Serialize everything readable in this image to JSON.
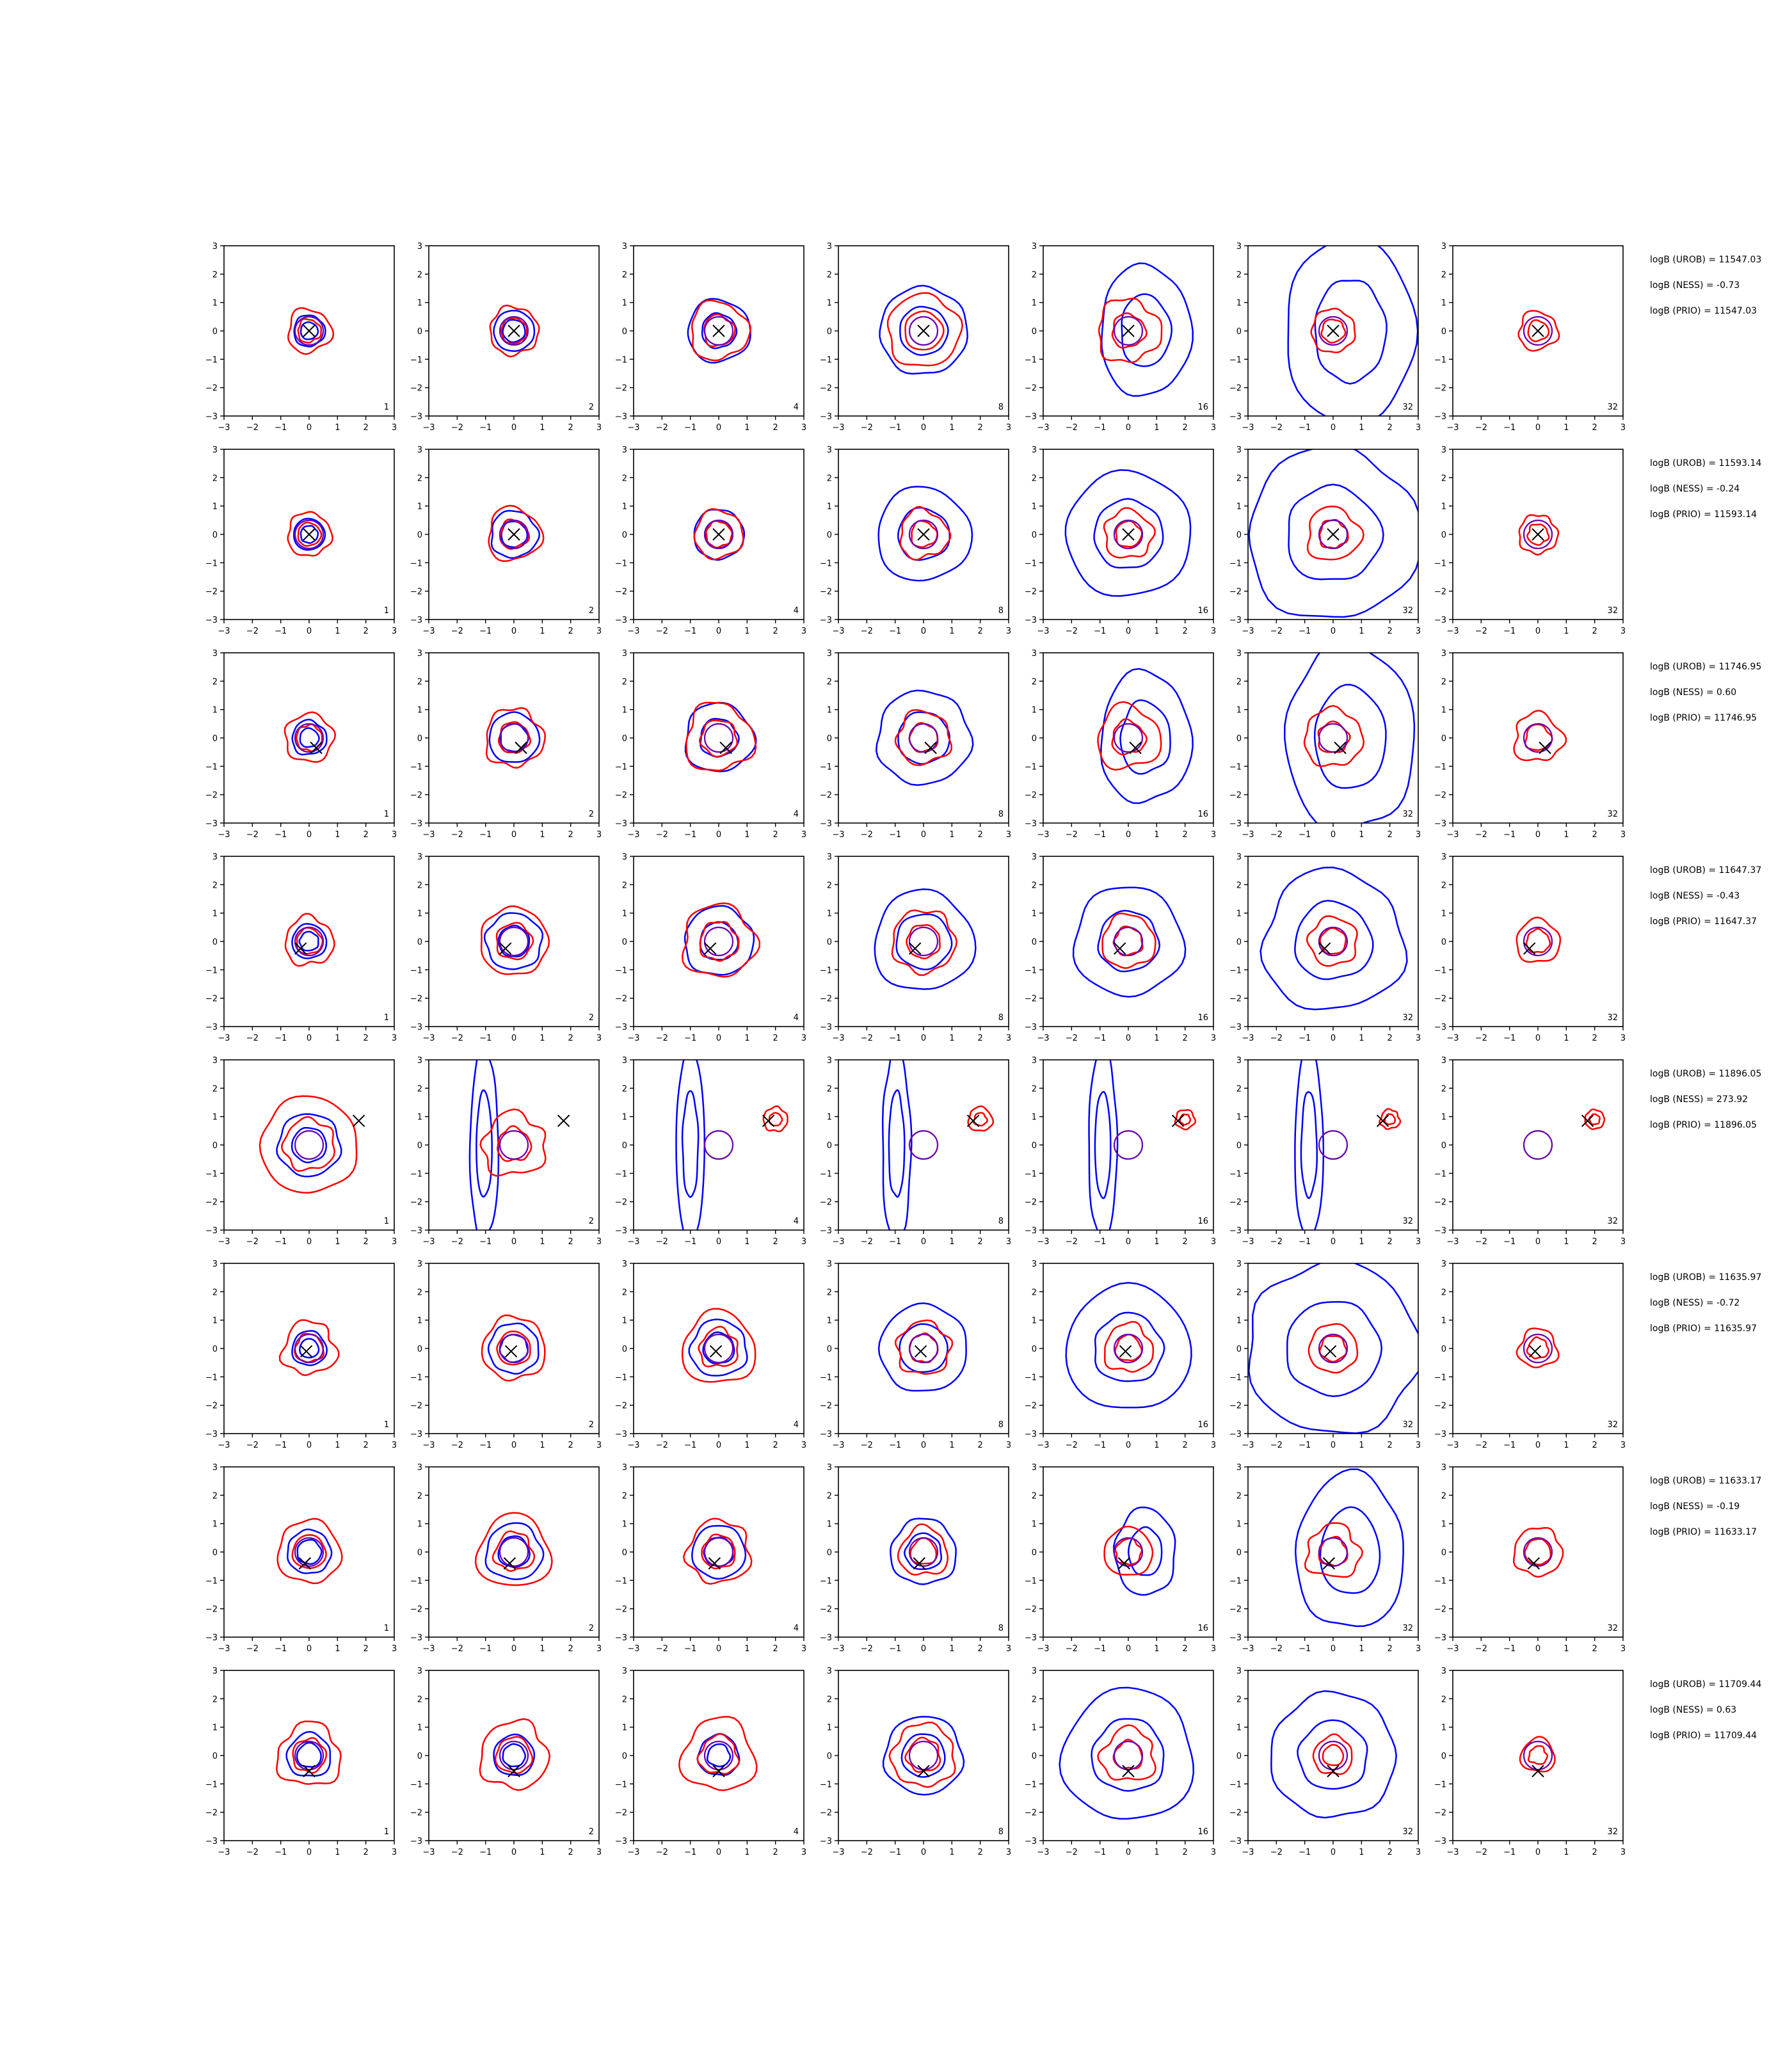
{
  "figure": {
    "columns": [
      "1",
      "2",
      "4",
      "8",
      "16",
      "32",
      "32"
    ],
    "ticks": [
      -3,
      -2,
      -1,
      0,
      1,
      2,
      3
    ],
    "colors": {
      "blue": "#0000ff",
      "red": "#ff0000",
      "marker": "#000000"
    }
  },
  "chart_data": [
    {
      "type": "contour",
      "row": 1,
      "marker": [
        0.0,
        0.0
      ],
      "xlim": [
        -3,
        3
      ],
      "ylim": [
        -3,
        3
      ],
      "blue_scale": [
        1.0,
        1.3,
        2.0,
        2.8,
        4.2,
        6.0,
        0
      ],
      "red_scale": [
        0.9,
        1.0,
        1.2,
        1.5,
        1.3,
        0.9,
        0.8
      ],
      "annotations": [
        "logB (UROB) = 11547.03",
        "logB (NESS) = -0.73",
        "logB (PRIO) = 11547.03"
      ]
    },
    {
      "type": "contour",
      "row": 2,
      "marker": [
        0.0,
        0.0
      ],
      "xlim": [
        -3,
        3
      ],
      "ylim": [
        -3,
        3
      ],
      "blue_scale": [
        1.0,
        1.5,
        1.6,
        3.0,
        4.0,
        5.5,
        0
      ],
      "red_scale": [
        0.9,
        1.1,
        1.0,
        1.0,
        1.0,
        1.1,
        0.8
      ],
      "annotations": [
        "logB (UROB) = 11593.14",
        "logB (NESS) = -0.24",
        "logB (PRIO) = 11593.14"
      ]
    },
    {
      "type": "contour",
      "row": 3,
      "marker": [
        0.25,
        -0.35
      ],
      "xlim": [
        -3,
        3
      ],
      "ylim": [
        -3,
        3
      ],
      "blue_scale": [
        1.1,
        1.6,
        2.2,
        3.0,
        4.2,
        6.0,
        0
      ],
      "red_scale": [
        1.0,
        1.2,
        1.4,
        1.1,
        1.3,
        1.2,
        1.0
      ],
      "annotations": [
        "logB (UROB) = 11746.95",
        "logB (NESS) = 0.60",
        "logB (PRIO) = 11746.95"
      ]
    },
    {
      "type": "contour",
      "row": 4,
      "marker": [
        -0.3,
        -0.25
      ],
      "xlim": [
        -3,
        3
      ],
      "ylim": [
        -3,
        3
      ],
      "blue_scale": [
        1.1,
        1.8,
        2.2,
        3.2,
        3.5,
        4.5,
        0
      ],
      "red_scale": [
        1.0,
        1.4,
        1.5,
        1.3,
        1.1,
        1.0,
        0.9
      ],
      "annotations": [
        "logB (UROB) = 11647.37",
        "logB (NESS) = -0.43",
        "logB (PRIO) = 11647.37"
      ]
    },
    {
      "type": "contour",
      "row": 5,
      "marker": [
        1.75,
        0.85
      ],
      "xlim": [
        -3,
        3
      ],
      "ylim": [
        -3,
        3
      ],
      "blue_scale": [
        2.0,
        3.0,
        3.5,
        4.0,
        4.5,
        5.0,
        0
      ],
      "red_scale": [
        2.0,
        1.3,
        0.5,
        0.5,
        0.4,
        0.4,
        0.4
      ],
      "annotations": [
        "logB (UROB) = 11896.05",
        "logB (NESS) = 273.92",
        "logB (PRIO) = 11896.05"
      ]
    },
    {
      "type": "contour",
      "row": 6,
      "marker": [
        -0.1,
        -0.1
      ],
      "xlim": [
        -3,
        3
      ],
      "ylim": [
        -3,
        3
      ],
      "blue_scale": [
        1.1,
        1.6,
        1.8,
        2.8,
        4.0,
        5.5,
        0
      ],
      "red_scale": [
        1.1,
        1.3,
        1.5,
        1.1,
        1.0,
        1.0,
        0.8
      ],
      "annotations": [
        "logB (UROB) = 11635.97",
        "logB (NESS) = -0.72",
        "logB (PRIO) = 11635.97"
      ]
    },
    {
      "type": "contour",
      "row": 7,
      "marker": [
        -0.15,
        -0.4
      ],
      "xlim": [
        -3,
        3
      ],
      "ylim": [
        -3,
        3
      ],
      "blue_scale": [
        1.4,
        1.8,
        1.7,
        2.1,
        2.8,
        5.0,
        0
      ],
      "red_scale": [
        1.3,
        1.5,
        1.3,
        1.0,
        1.0,
        1.1,
        1.0
      ],
      "annotations": [
        "logB (UROB) = 11633.17",
        "logB (NESS) = -0.19",
        "logB (PRIO) = 11633.17"
      ]
    },
    {
      "type": "contour",
      "row": 8,
      "marker": [
        0.0,
        -0.55
      ],
      "xlim": [
        -3,
        3
      ],
      "ylim": [
        -3,
        3
      ],
      "blue_scale": [
        1.4,
        1.3,
        1.3,
        2.5,
        4.2,
        4.0,
        0
      ],
      "red_scale": [
        1.3,
        1.4,
        1.5,
        1.3,
        1.1,
        0.8,
        0.7
      ],
      "annotations": [
        "logB (UROB) = 11709.44",
        "logB (NESS) = 0.63",
        "logB (PRIO) = 11709.44"
      ]
    }
  ]
}
